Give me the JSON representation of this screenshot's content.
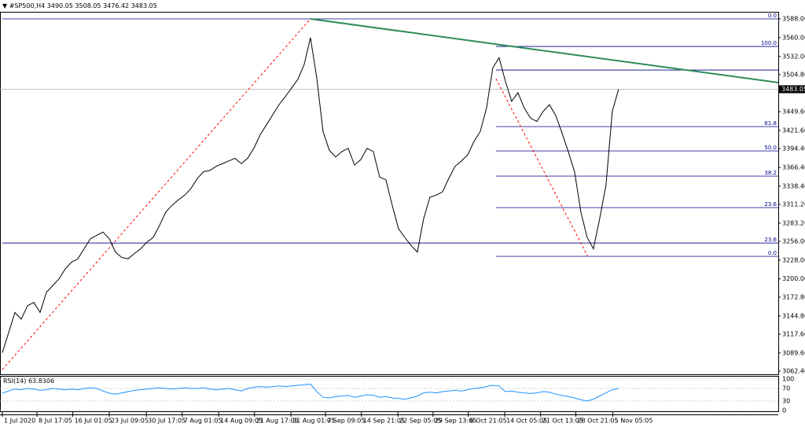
{
  "chart_data": {
    "type": "line",
    "header": {
      "symbol": "#SP500,H4",
      "ohlc": [
        3490.05,
        3508.05,
        3476.42,
        3483.05
      ]
    },
    "last_price": {
      "value": 3483.05,
      "label": "3483.05"
    },
    "xlim": [
      0,
      123.4
    ],
    "ylim": [
      3057.7,
      3598.6
    ],
    "yticks": [
      {
        "value": 3588,
        "label": "3588.00"
      },
      {
        "value": 3560,
        "label": "3560.00"
      },
      {
        "value": 3532,
        "label": "3532.00"
      },
      {
        "value": 3504.8,
        "label": "3504.80"
      },
      {
        "value": 3449.6,
        "label": "3449.60"
      },
      {
        "value": 3421.6,
        "label": "3421.60"
      },
      {
        "value": 3394.4,
        "label": "3394.40"
      },
      {
        "value": 3366.4,
        "label": "3366.40"
      },
      {
        "value": 3338.4,
        "label": "3338.40"
      },
      {
        "value": 3311.2,
        "label": "3311.20"
      },
      {
        "value": 3283.2,
        "label": "3283.20"
      },
      {
        "value": 3256,
        "label": "3256.00"
      },
      {
        "value": 3228,
        "label": "3228.00"
      },
      {
        "value": 3200,
        "label": "3200.00"
      },
      {
        "value": 3172.8,
        "label": "3172.80"
      },
      {
        "value": 3144.8,
        "label": "3144.80"
      },
      {
        "value": 3117.6,
        "label": "3117.60"
      },
      {
        "value": 3089.6,
        "label": "3089.60"
      },
      {
        "value": 3062.4,
        "label": "3062.40"
      }
    ],
    "xticks": [
      {
        "value": 0,
        "label": "1 Jul 2020"
      },
      {
        "value": 5.5,
        "label": "8 Jul 17:05"
      },
      {
        "value": 11.2,
        "label": "16 Jul 01:05"
      },
      {
        "value": 17,
        "label": "23 Jul 09:05"
      },
      {
        "value": 22.9,
        "label": "30 Jul 17:05"
      },
      {
        "value": 28.6,
        "label": "7 Aug 01:05"
      },
      {
        "value": 34.4,
        "label": "14 Aug 09:05"
      },
      {
        "value": 40.1,
        "label": "21 Aug 17:05"
      },
      {
        "value": 45.9,
        "label": "31 Aug 01:05"
      },
      {
        "value": 51.4,
        "label": "7 Sep 09:05"
      },
      {
        "value": 57.1,
        "label": "14 Sep 21:05"
      },
      {
        "value": 62.9,
        "label": "22 Sep 05:05"
      },
      {
        "value": 68.5,
        "label": "29 Sep 13:05"
      },
      {
        "value": 74.1,
        "label": "6 Oct 21:05"
      },
      {
        "value": 79.9,
        "label": "14 Oct 05:05"
      },
      {
        "value": 85.6,
        "label": "21 Oct 13:05"
      },
      {
        "value": 91.2,
        "label": "28 Oct 21:05"
      },
      {
        "value": 97.1,
        "label": "5 Nov 05:05"
      }
    ],
    "series": [
      {
        "color": "#000000",
        "values": [
          3090,
          3120,
          3150,
          3140,
          3160,
          3165,
          3150,
          3180,
          3190,
          3200,
          3215,
          3225,
          3230,
          3245,
          3260,
          3265,
          3270,
          3260,
          3240,
          3232,
          3230,
          3238,
          3245,
          3255,
          3262,
          3280,
          3300,
          3310,
          3318,
          3325,
          3335,
          3350,
          3360,
          3362,
          3368,
          3372,
          3376,
          3380,
          3372,
          3380,
          3395,
          3415,
          3430,
          3445,
          3460,
          3472,
          3485,
          3498,
          3520,
          3560,
          3500,
          3420,
          3392,
          3382,
          3390,
          3395,
          3370,
          3378,
          3395,
          3390,
          3352,
          3348,
          3310,
          3275,
          3262,
          3250,
          3240,
          3290,
          3322,
          3325,
          3330,
          3350,
          3368,
          3376,
          3385,
          3405,
          3420,
          3455,
          3515,
          3530,
          3495,
          3465,
          3478,
          3455,
          3440,
          3435,
          3450,
          3460,
          3444,
          3418,
          3390,
          3360,
          3300,
          3262,
          3245,
          3290,
          3340,
          3450,
          3483.05
        ]
      }
    ],
    "trendlines": [
      {
        "x": [
          49,
          123.4
        ],
        "y": [
          3588,
          3493
        ],
        "color": "#2e8b57",
        "dash": false
      },
      {
        "x": [
          0,
          49
        ],
        "y": [
          3064.8,
          3588
        ],
        "color": "#ff0000",
        "dash": true
      },
      {
        "x": [
          78.5,
          93.1
        ],
        "y": [
          3498.8,
          3233.7
        ],
        "color": "#ff0000",
        "dash": true
      }
    ],
    "levels": [
      {
        "label": "0.0",
        "value": 3588,
        "from": 0
      },
      {
        "label": "100.0",
        "value": 3546.9,
        "from": 78.5
      },
      {
        "label": "61.8",
        "value": 3427.3,
        "from": 78.5
      },
      {
        "label": "50.0",
        "value": 3390.9,
        "from": 78.5
      },
      {
        "label": "38.2",
        "value": 3353.4,
        "from": 78.5
      },
      {
        "label": "23.6",
        "value": 3306.4,
        "from": 78.5
      },
      {
        "label": "23.6",
        "value": 3253.6,
        "from": 0
      },
      {
        "label": "0.0",
        "value": 3233.7,
        "from": 78.5
      }
    ],
    "extra_level": {
      "value": 3511.7,
      "from": 78.5
    },
    "rsi": {
      "name": "RSI(14)",
      "value": 63.8306,
      "ylim": [
        0,
        100
      ],
      "yticks": [
        100,
        70,
        30,
        0
      ],
      "color": "#1e90ff",
      "values": [
        55,
        62,
        68,
        66,
        70,
        68,
        64,
        66,
        70,
        68,
        66,
        68,
        66,
        70,
        72,
        70,
        62,
        55,
        52,
        56,
        60,
        64,
        66,
        68,
        70,
        72,
        70,
        68,
        70,
        72,
        70,
        70,
        72,
        68,
        66,
        68,
        70,
        66,
        62,
        70,
        74,
        76,
        74,
        76,
        78,
        76,
        78,
        80,
        82,
        84,
        60,
        42,
        40,
        44,
        46,
        48,
        42,
        46,
        50,
        48,
        42,
        44,
        40,
        38,
        36,
        40,
        46,
        56,
        58,
        56,
        60,
        62,
        64,
        62,
        66,
        70,
        72,
        76,
        80,
        78,
        60,
        62,
        58,
        56,
        54,
        56,
        60,
        58,
        52,
        48,
        44,
        40,
        34,
        30,
        36,
        46,
        56,
        66,
        70
      ]
    }
  }
}
